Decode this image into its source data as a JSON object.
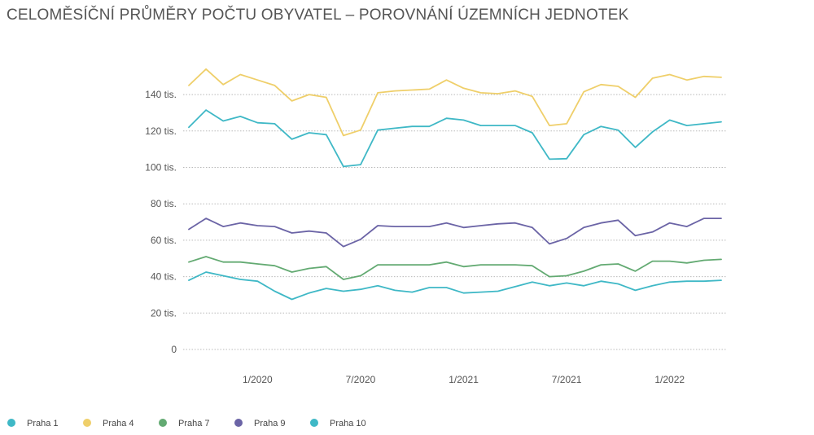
{
  "chart_data": {
    "type": "line",
    "title": "CELOMĚSÍČNÍ PRŮMĚRY POČTU OBYVATEL – POROVNÁNÍ ÚZEMNÍCH JEDNOTEK",
    "xlabel": "",
    "ylabel": "",
    "ylim": [
      0,
      150000
    ],
    "y_ticks": [
      {
        "value": 0,
        "label": "0"
      },
      {
        "value": 20000,
        "label": "20 tis."
      },
      {
        "value": 40000,
        "label": "40 tis."
      },
      {
        "value": 60000,
        "label": "60 tis."
      },
      {
        "value": 80000,
        "label": "80 tis."
      },
      {
        "value": 100000,
        "label": "100 tis."
      },
      {
        "value": 120000,
        "label": "120 tis."
      },
      {
        "value": 140000,
        "label": "140 tis."
      }
    ],
    "x_ticks": [
      {
        "index": 4,
        "label": "1/2020"
      },
      {
        "index": 10,
        "label": "7/2020"
      },
      {
        "index": 16,
        "label": "1/2021"
      },
      {
        "index": 22,
        "label": "7/2021"
      },
      {
        "index": 28,
        "label": "1/2022"
      }
    ],
    "grid": true,
    "legend_position": "bottom-left",
    "x": [
      "9/2019",
      "10/2019",
      "11/2019",
      "12/2019",
      "1/2020",
      "2/2020",
      "3/2020",
      "4/2020",
      "5/2020",
      "6/2020",
      "7/2020",
      "8/2020",
      "9/2020",
      "10/2020",
      "11/2020",
      "12/2020",
      "1/2021",
      "2/2021",
      "3/2021",
      "4/2021",
      "5/2021",
      "6/2021",
      "7/2021",
      "8/2021",
      "9/2021",
      "10/2021",
      "11/2021",
      "12/2021",
      "1/2022",
      "2/2022",
      "3/2022",
      "4/2022"
    ],
    "series": [
      {
        "name": "Praha 1",
        "color": "#3fb8c6",
        "values": [
          122000,
          131500,
          125500,
          128000,
          124500,
          124000,
          115500,
          119000,
          118000,
          100500,
          101500,
          120500,
          121500,
          122500,
          122500,
          127000,
          126000,
          123000,
          123000,
          123000,
          119000,
          104500,
          104800,
          118000,
          122500,
          120500,
          111000,
          119500,
          126000,
          123000,
          124000,
          125000
        ]
      },
      {
        "name": "Praha 4",
        "color": "#efcf6a",
        "values": [
          145000,
          154000,
          145500,
          151000,
          148000,
          145000,
          136500,
          140000,
          138500,
          117500,
          120500,
          141000,
          142000,
          142500,
          143000,
          148000,
          143500,
          141000,
          140500,
          142000,
          139000,
          123000,
          124000,
          141500,
          145500,
          144500,
          138500,
          149000,
          151000,
          148000,
          150000,
          149500
        ]
      },
      {
        "name": "Praha 7",
        "color": "#63aa72",
        "values": [
          48000,
          51000,
          48000,
          48000,
          47000,
          46000,
          42500,
          44500,
          45500,
          38500,
          40500,
          46500,
          46500,
          46500,
          46500,
          48000,
          45500,
          46500,
          46500,
          46500,
          46000,
          40000,
          40500,
          43000,
          46500,
          47000,
          43000,
          48500,
          48500,
          47500,
          49000,
          49500
        ]
      },
      {
        "name": "Praha 9",
        "color": "#6b64a6",
        "values": [
          66000,
          72000,
          67500,
          69500,
          68000,
          67500,
          64000,
          65000,
          64000,
          56500,
          60500,
          68000,
          67500,
          67500,
          67500,
          69500,
          67000,
          68000,
          69000,
          69500,
          67000,
          58000,
          61000,
          67000,
          69500,
          71000,
          62500,
          64500,
          69500,
          67500,
          72000,
          72000
        ]
      },
      {
        "name": "Praha 10",
        "color": "#3fb8c6",
        "values": [
          38000,
          42500,
          40500,
          38500,
          37500,
          32000,
          27500,
          31000,
          33500,
          32000,
          33000,
          35000,
          32500,
          31500,
          34000,
          34000,
          31000,
          31500,
          32000,
          34500,
          37000,
          35000,
          36500,
          35000,
          37500,
          36000,
          32500,
          35000,
          37000,
          37500,
          37500,
          38000
        ]
      }
    ]
  }
}
